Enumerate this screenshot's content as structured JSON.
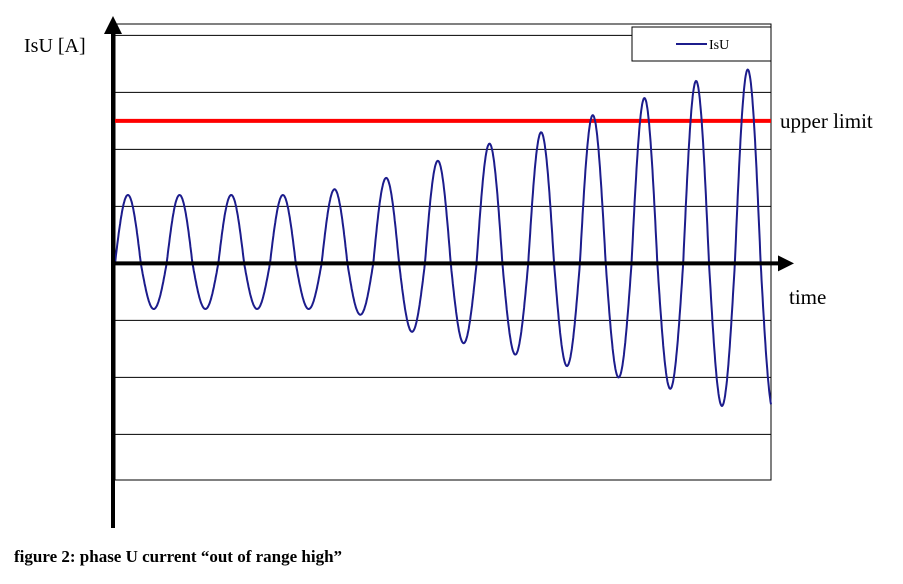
{
  "caption": "figure 2: phase U current “out of range high”",
  "chart_data": {
    "type": "line",
    "ylabel": "IsU [A]",
    "xlabel": "time",
    "legend": {
      "placement": "top-right",
      "entries": [
        "IsU"
      ]
    },
    "grid": {
      "horizontal": true,
      "vertical": false
    },
    "ylim": [
      -3.8,
      4.2
    ],
    "xlim": [
      0,
      12.7
    ],
    "threshold": {
      "label": "upper limit",
      "value": 2.5,
      "color": "#ff0000"
    },
    "series": [
      {
        "name": "IsU",
        "color": "#1c1c8c",
        "peaks": [
          1.2,
          1.2,
          1.2,
          1.2,
          1.3,
          1.5,
          1.8,
          2.1,
          2.3,
          2.6,
          2.9,
          3.2,
          3.4,
          3.6
        ],
        "troughs": [
          -0.8,
          -0.8,
          -0.8,
          -0.8,
          -0.9,
          -1.2,
          -1.4,
          -1.6,
          -1.8,
          -2.0,
          -2.2,
          -2.5,
          -2.6,
          -2.8
        ]
      }
    ]
  }
}
